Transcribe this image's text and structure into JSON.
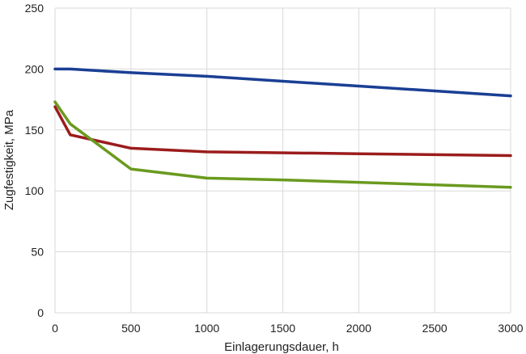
{
  "chart_data": {
    "type": "line",
    "xlabel": "Einlagerungsdauer, h",
    "ylabel": "Zugfestigkeit, MPa",
    "xlim": [
      0,
      3000
    ],
    "ylim": [
      0,
      250
    ],
    "x_ticks": [
      0,
      500,
      1000,
      1500,
      2000,
      2500,
      3000
    ],
    "y_ticks": [
      0,
      50,
      100,
      150,
      200,
      250
    ],
    "grid": true,
    "legend": "none",
    "series": [
      {
        "color": "#1a3f94",
        "points": [
          [
            0,
            200
          ],
          [
            100,
            200
          ],
          [
            500,
            197
          ],
          [
            1000,
            194
          ],
          [
            1500,
            190
          ],
          [
            2000,
            186
          ],
          [
            2500,
            182
          ],
          [
            3000,
            178
          ]
        ]
      },
      {
        "color": "#9b1c1c",
        "points": [
          [
            0,
            169
          ],
          [
            100,
            146
          ],
          [
            500,
            135
          ],
          [
            1000,
            132
          ],
          [
            2000,
            130.5
          ],
          [
            3000,
            129
          ]
        ]
      },
      {
        "color": "#6a9a1f",
        "points": [
          [
            0,
            173
          ],
          [
            100,
            155
          ],
          [
            500,
            118
          ],
          [
            1000,
            110.5
          ],
          [
            1500,
            109
          ],
          [
            2000,
            107
          ],
          [
            3000,
            103
          ]
        ]
      }
    ]
  }
}
